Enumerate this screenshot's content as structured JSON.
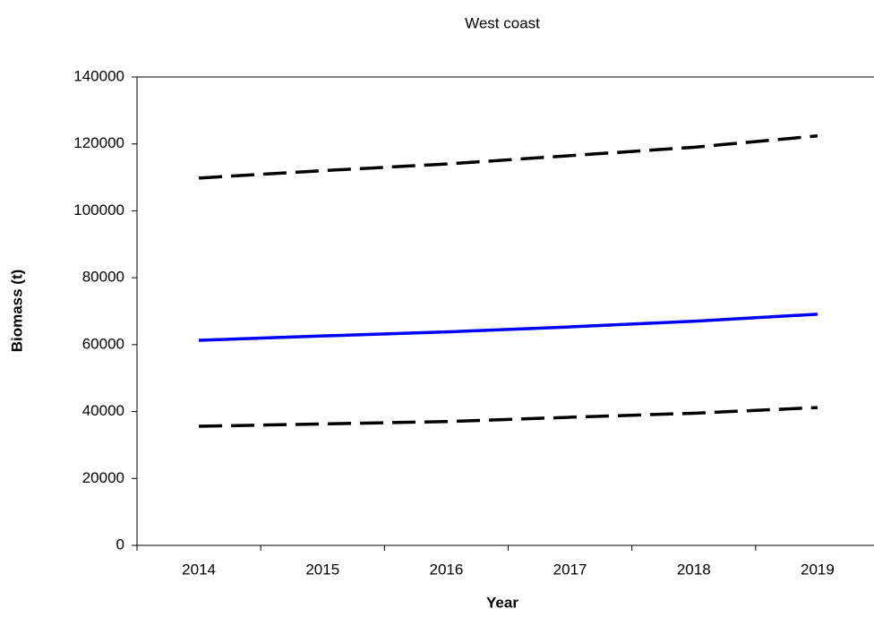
{
  "chart_data": {
    "type": "line",
    "title": "West coast",
    "x_label": "Year",
    "y_label": "Biomass (t)",
    "categories": [
      "2014",
      "2015",
      "2016",
      "2017",
      "2018",
      "2019"
    ],
    "series": [
      {
        "color": "#000000",
        "line_style": "dashed",
        "values": [
          109800,
          112000,
          114000,
          116500,
          119000,
          122400
        ]
      },
      {
        "color": "#0000ff",
        "line_style": "solid",
        "values": [
          61300,
          62600,
          63800,
          65300,
          67000,
          69100
        ]
      },
      {
        "color": "#000000",
        "line_style": "dashed",
        "values": [
          35600,
          36300,
          37000,
          38300,
          39500,
          41200
        ]
      }
    ],
    "ylim": [
      0,
      140000
    ],
    "yticks": [
      0,
      20000,
      40000,
      60000,
      80000,
      100000,
      120000,
      140000
    ],
    "grid": false
  }
}
